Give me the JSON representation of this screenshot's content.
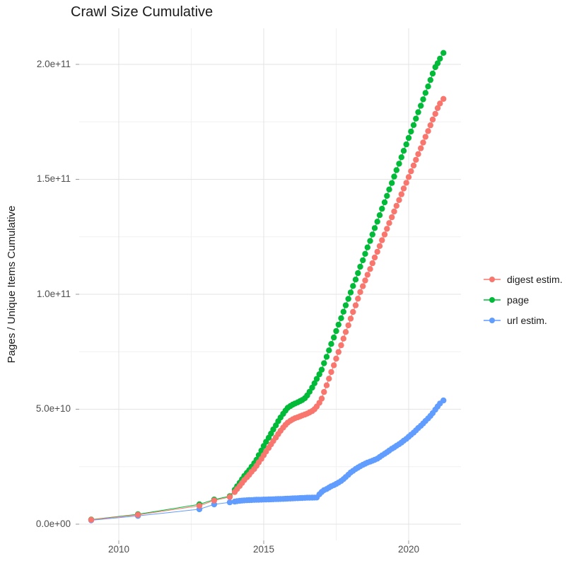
{
  "chart_data": {
    "type": "scatter",
    "title": "Crawl Size Cumulative",
    "xlabel": "",
    "ylabel": "Pages / Unique Items Cumulative",
    "legend_position": "right",
    "grid": true,
    "background_color": "#FFFFFF",
    "grid_major_color": "#E3E3E3",
    "grid_minor_color": "#F0F0F0",
    "tick_color": "#999999",
    "x_axis": {
      "tick_values": [
        2010,
        2015,
        2020
      ],
      "tick_labels": [
        "2010",
        "2015",
        "2020"
      ],
      "minor_ticks": [
        2012.5,
        2017.5
      ],
      "range": [
        2008.65,
        2022.1
      ]
    },
    "y_axis": {
      "tick_values_e9": [
        0,
        50,
        100,
        150,
        200
      ],
      "tick_labels": [
        "0.0e+00",
        "5.0e+10",
        "1.0e+11",
        "1.5e+11",
        "2.0e+11"
      ],
      "minor_ticks_e9": [
        25,
        75,
        125,
        175
      ],
      "range_e9": [
        -7,
        215
      ]
    },
    "value_unit": "items, stored as billions (1e9)",
    "legend": {
      "entries": [
        {
          "label": "digest estim.",
          "color": "#F8766D"
        },
        {
          "label": "page",
          "color": "#00BA38"
        },
        {
          "label": "url estim.",
          "color": "#619CFF"
        }
      ]
    },
    "series": [
      {
        "name": "digest estim.",
        "color": "#F8766D",
        "points": [
          [
            2009.05,
            1.9
          ],
          [
            2010.66,
            4.1
          ],
          [
            2012.78,
            8.0
          ],
          [
            2013.29,
            10.3
          ],
          [
            2013.83,
            11.8
          ],
          [
            2014.0,
            14.0
          ],
          [
            2014.08,
            15.3
          ],
          [
            2014.17,
            16.6
          ],
          [
            2014.25,
            17.9
          ],
          [
            2014.33,
            19.2
          ],
          [
            2014.42,
            20.4
          ],
          [
            2014.5,
            21.5
          ],
          [
            2014.58,
            22.8
          ],
          [
            2014.67,
            24.0
          ],
          [
            2014.75,
            25.4
          ],
          [
            2014.83,
            26.9
          ],
          [
            2014.92,
            28.4
          ],
          [
            2015.0,
            30.0
          ],
          [
            2015.08,
            31.6
          ],
          [
            2015.17,
            33.2
          ],
          [
            2015.25,
            34.7
          ],
          [
            2015.33,
            36.2
          ],
          [
            2015.42,
            37.7
          ],
          [
            2015.5,
            39.2
          ],
          [
            2015.58,
            40.6
          ],
          [
            2015.67,
            42.0
          ],
          [
            2015.75,
            43.2
          ],
          [
            2015.83,
            44.2
          ],
          [
            2015.92,
            45.0
          ],
          [
            2016.0,
            45.6
          ],
          [
            2016.08,
            46.1
          ],
          [
            2016.17,
            46.5
          ],
          [
            2016.25,
            46.9
          ],
          [
            2016.33,
            47.3
          ],
          [
            2016.42,
            47.7
          ],
          [
            2016.5,
            48.1
          ],
          [
            2016.58,
            48.6
          ],
          [
            2016.67,
            49.2
          ],
          [
            2016.75,
            50.0
          ],
          [
            2016.83,
            51.2
          ],
          [
            2016.92,
            52.8
          ],
          [
            2017.0,
            54.6
          ],
          [
            2017.08,
            57.5
          ],
          [
            2017.17,
            60.4
          ],
          [
            2017.25,
            63.3
          ],
          [
            2017.33,
            66.2
          ],
          [
            2017.42,
            69.1
          ],
          [
            2017.5,
            72.0
          ],
          [
            2017.58,
            74.9
          ],
          [
            2017.67,
            77.8
          ],
          [
            2017.75,
            80.7
          ],
          [
            2017.83,
            83.6
          ],
          [
            2017.92,
            86.5
          ],
          [
            2018.0,
            89.4
          ],
          [
            2018.08,
            92.3
          ],
          [
            2018.17,
            95.2
          ],
          [
            2018.25,
            98.1
          ],
          [
            2018.33,
            101.0
          ],
          [
            2018.42,
            103.5
          ],
          [
            2018.5,
            106.0
          ],
          [
            2018.58,
            108.5
          ],
          [
            2018.67,
            111.0
          ],
          [
            2018.75,
            113.5
          ],
          [
            2018.83,
            116.0
          ],
          [
            2018.92,
            118.5
          ],
          [
            2019.0,
            121.0
          ],
          [
            2019.08,
            123.5
          ],
          [
            2019.17,
            126.0
          ],
          [
            2019.25,
            128.5
          ],
          [
            2019.33,
            131.0
          ],
          [
            2019.42,
            133.5
          ],
          [
            2019.5,
            136.0
          ],
          [
            2019.58,
            138.5
          ],
          [
            2019.67,
            141.0
          ],
          [
            2019.75,
            143.5
          ],
          [
            2019.83,
            146.0
          ],
          [
            2019.92,
            148.5
          ],
          [
            2020.0,
            151.0
          ],
          [
            2020.08,
            153.5
          ],
          [
            2020.17,
            156.0
          ],
          [
            2020.25,
            158.5
          ],
          [
            2020.33,
            161.0
          ],
          [
            2020.42,
            163.5
          ],
          [
            2020.5,
            166.0
          ],
          [
            2020.58,
            168.5
          ],
          [
            2020.67,
            171.0
          ],
          [
            2020.75,
            173.5
          ],
          [
            2020.83,
            176.0
          ],
          [
            2020.92,
            178.5
          ],
          [
            2021.0,
            181.0
          ],
          [
            2021.08,
            183.0
          ],
          [
            2021.2,
            185.0
          ]
        ]
      },
      {
        "name": "page",
        "color": "#00BA38",
        "points": [
          [
            2009.05,
            2.0
          ],
          [
            2010.66,
            4.3
          ],
          [
            2012.78,
            8.6
          ],
          [
            2013.29,
            10.7
          ],
          [
            2013.83,
            12.2
          ],
          [
            2014.0,
            15.0
          ],
          [
            2014.08,
            16.5
          ],
          [
            2014.17,
            18.0
          ],
          [
            2014.25,
            19.5
          ],
          [
            2014.33,
            21.0
          ],
          [
            2014.42,
            22.3
          ],
          [
            2014.5,
            23.5
          ],
          [
            2014.58,
            25.0
          ],
          [
            2014.67,
            26.5
          ],
          [
            2014.75,
            28.0
          ],
          [
            2014.83,
            30.0
          ],
          [
            2014.92,
            32.0
          ],
          [
            2015.0,
            34.0
          ],
          [
            2015.08,
            35.8
          ],
          [
            2015.17,
            37.6
          ],
          [
            2015.25,
            39.4
          ],
          [
            2015.33,
            41.2
          ],
          [
            2015.42,
            43.0
          ],
          [
            2015.5,
            44.8
          ],
          [
            2015.58,
            46.4
          ],
          [
            2015.67,
            48.0
          ],
          [
            2015.75,
            49.4
          ],
          [
            2015.83,
            50.6
          ],
          [
            2015.92,
            51.4
          ],
          [
            2016.0,
            52.0
          ],
          [
            2016.08,
            52.5
          ],
          [
            2016.17,
            53.0
          ],
          [
            2016.25,
            53.5
          ],
          [
            2016.33,
            54.0
          ],
          [
            2016.42,
            54.8
          ],
          [
            2016.5,
            56.0
          ],
          [
            2016.58,
            57.6
          ],
          [
            2016.67,
            59.4
          ],
          [
            2016.75,
            61.3
          ],
          [
            2016.83,
            63.2
          ],
          [
            2016.92,
            65.2
          ],
          [
            2017.0,
            67.2
          ],
          [
            2017.08,
            70.0
          ],
          [
            2017.17,
            72.8
          ],
          [
            2017.25,
            75.6
          ],
          [
            2017.33,
            78.4
          ],
          [
            2017.42,
            81.2
          ],
          [
            2017.5,
            84.0
          ],
          [
            2017.58,
            86.8
          ],
          [
            2017.67,
            89.6
          ],
          [
            2017.75,
            92.4
          ],
          [
            2017.83,
            95.2
          ],
          [
            2017.92,
            98.0
          ],
          [
            2018.0,
            100.8
          ],
          [
            2018.08,
            103.6
          ],
          [
            2018.17,
            106.4
          ],
          [
            2018.25,
            109.2
          ],
          [
            2018.33,
            112.0
          ],
          [
            2018.42,
            114.8
          ],
          [
            2018.5,
            117.6
          ],
          [
            2018.58,
            120.4
          ],
          [
            2018.67,
            123.2
          ],
          [
            2018.75,
            126.0
          ],
          [
            2018.83,
            128.8
          ],
          [
            2018.92,
            131.6
          ],
          [
            2019.0,
            134.4
          ],
          [
            2019.08,
            137.2
          ],
          [
            2019.17,
            140.0
          ],
          [
            2019.25,
            142.8
          ],
          [
            2019.33,
            145.6
          ],
          [
            2019.42,
            148.4
          ],
          [
            2019.5,
            151.2
          ],
          [
            2019.58,
            154.0
          ],
          [
            2019.67,
            156.8
          ],
          [
            2019.75,
            159.6
          ],
          [
            2019.83,
            162.4
          ],
          [
            2019.92,
            165.2
          ],
          [
            2020.0,
            168.0
          ],
          [
            2020.08,
            170.8
          ],
          [
            2020.17,
            173.6
          ],
          [
            2020.25,
            176.4
          ],
          [
            2020.33,
            179.2
          ],
          [
            2020.42,
            182.0
          ],
          [
            2020.5,
            184.8
          ],
          [
            2020.58,
            187.6
          ],
          [
            2020.67,
            190.4
          ],
          [
            2020.75,
            193.2
          ],
          [
            2020.83,
            196.0
          ],
          [
            2020.92,
            198.8
          ],
          [
            2021.0,
            200.5
          ],
          [
            2021.08,
            202.5
          ],
          [
            2021.2,
            205.0
          ]
        ]
      },
      {
        "name": "url estim.",
        "color": "#619CFF",
        "points": [
          [
            2009.05,
            1.7
          ],
          [
            2010.66,
            3.6
          ],
          [
            2012.78,
            6.5
          ],
          [
            2013.29,
            8.6
          ],
          [
            2013.83,
            9.5
          ],
          [
            2014.0,
            9.8
          ],
          [
            2014.08,
            10.0
          ],
          [
            2014.17,
            10.15
          ],
          [
            2014.25,
            10.25
          ],
          [
            2014.33,
            10.35
          ],
          [
            2014.42,
            10.4
          ],
          [
            2014.5,
            10.45
          ],
          [
            2014.58,
            10.5
          ],
          [
            2014.67,
            10.55
          ],
          [
            2014.75,
            10.6
          ],
          [
            2014.83,
            10.62
          ],
          [
            2014.92,
            10.66
          ],
          [
            2015.0,
            10.7
          ],
          [
            2015.08,
            10.72
          ],
          [
            2015.17,
            10.76
          ],
          [
            2015.25,
            10.8
          ],
          [
            2015.33,
            10.84
          ],
          [
            2015.42,
            10.88
          ],
          [
            2015.5,
            10.92
          ],
          [
            2015.58,
            10.96
          ],
          [
            2015.67,
            11.0
          ],
          [
            2015.75,
            11.05
          ],
          [
            2015.83,
            11.1
          ],
          [
            2015.92,
            11.15
          ],
          [
            2016.0,
            11.2
          ],
          [
            2016.08,
            11.25
          ],
          [
            2016.17,
            11.3
          ],
          [
            2016.25,
            11.35
          ],
          [
            2016.33,
            11.4
          ],
          [
            2016.42,
            11.45
          ],
          [
            2016.5,
            11.5
          ],
          [
            2016.58,
            11.52
          ],
          [
            2016.67,
            11.55
          ],
          [
            2016.75,
            11.58
          ],
          [
            2016.83,
            11.6
          ],
          [
            2016.92,
            13.0
          ],
          [
            2017.0,
            14.0
          ],
          [
            2017.08,
            14.8
          ],
          [
            2017.17,
            15.3
          ],
          [
            2017.25,
            15.9
          ],
          [
            2017.33,
            16.5
          ],
          [
            2017.42,
            17.0
          ],
          [
            2017.5,
            17.5
          ],
          [
            2017.58,
            18.1
          ],
          [
            2017.67,
            18.8
          ],
          [
            2017.75,
            19.6
          ],
          [
            2017.83,
            20.5
          ],
          [
            2017.92,
            21.5
          ],
          [
            2018.0,
            22.5
          ],
          [
            2018.08,
            23.2
          ],
          [
            2018.17,
            24.0
          ],
          [
            2018.25,
            24.6
          ],
          [
            2018.33,
            25.2
          ],
          [
            2018.42,
            25.8
          ],
          [
            2018.5,
            26.3
          ],
          [
            2018.58,
            26.8
          ],
          [
            2018.67,
            27.2
          ],
          [
            2018.75,
            27.6
          ],
          [
            2018.83,
            28.0
          ],
          [
            2018.92,
            28.5
          ],
          [
            2019.0,
            29.2
          ],
          [
            2019.08,
            29.9
          ],
          [
            2019.17,
            30.6
          ],
          [
            2019.25,
            31.3
          ],
          [
            2019.33,
            32.0
          ],
          [
            2019.42,
            32.8
          ],
          [
            2019.5,
            33.4
          ],
          [
            2019.58,
            34.1
          ],
          [
            2019.67,
            34.8
          ],
          [
            2019.75,
            35.5
          ],
          [
            2019.83,
            36.3
          ],
          [
            2019.92,
            37.1
          ],
          [
            2020.0,
            38.0
          ],
          [
            2020.08,
            38.9
          ],
          [
            2020.17,
            39.8
          ],
          [
            2020.25,
            40.8
          ],
          [
            2020.33,
            41.8
          ],
          [
            2020.42,
            42.8
          ],
          [
            2020.5,
            43.8
          ],
          [
            2020.58,
            44.9
          ],
          [
            2020.67,
            46.0
          ],
          [
            2020.75,
            47.1
          ],
          [
            2020.83,
            48.3
          ],
          [
            2020.92,
            49.8
          ],
          [
            2021.0,
            51.2
          ],
          [
            2021.08,
            52.5
          ],
          [
            2021.2,
            53.8
          ]
        ]
      }
    ]
  }
}
